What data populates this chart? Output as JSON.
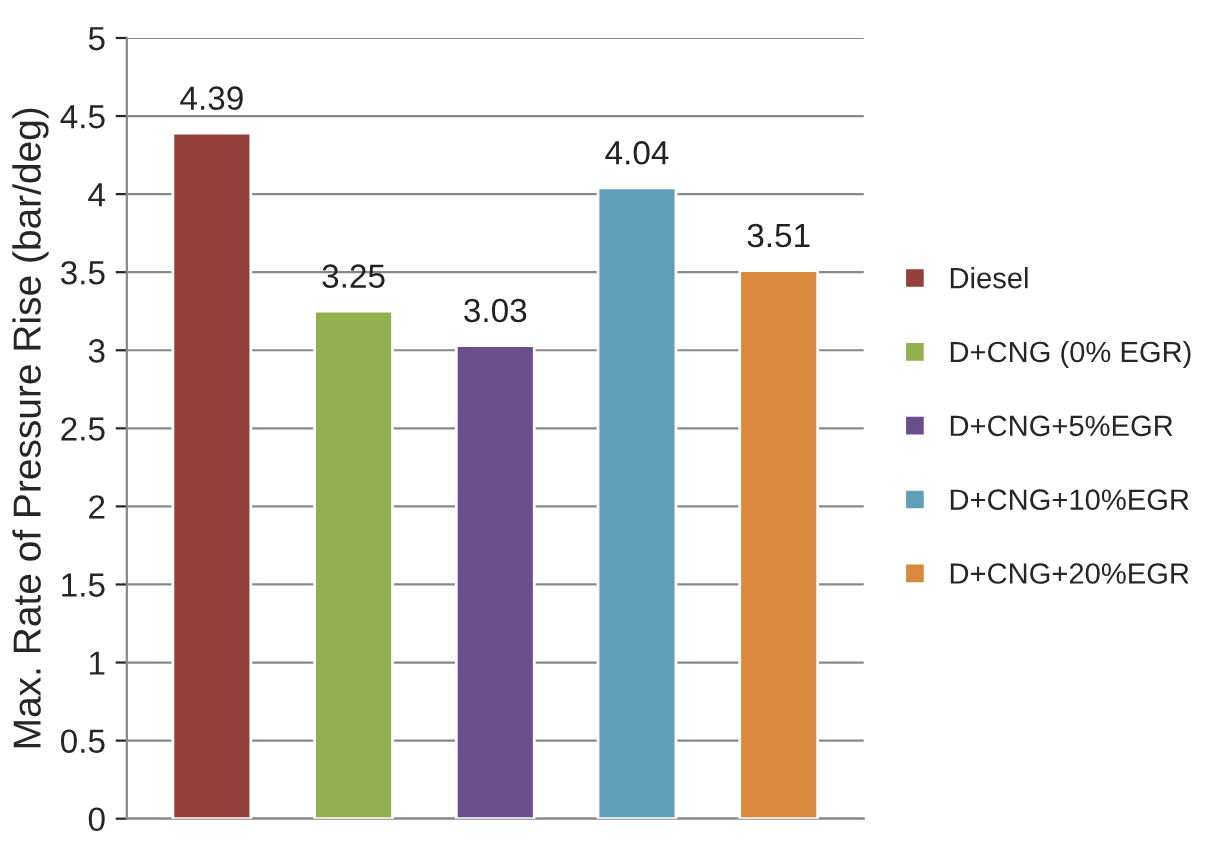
{
  "chart_data": {
    "type": "bar",
    "ylabel": "Max. Rate of Pressure Rise (bar/deg)",
    "categories": [
      null,
      null,
      null,
      null,
      null
    ],
    "series": [
      {
        "name": "Diesel",
        "color": "#953f3d",
        "values": [
          4.39,
          null,
          null,
          null,
          null
        ]
      },
      {
        "name": "D+CNG (0% EGR)",
        "color": "#93b04e",
        "values": [
          null,
          3.25,
          null,
          null,
          null
        ]
      },
      {
        "name": "D+CNG+5%EGR",
        "color": "#6a4e8e",
        "values": [
          null,
          null,
          3.03,
          null,
          null
        ]
      },
      {
        "name": "D+CNG+10%EGR",
        "color": "#619eba",
        "values": [
          null,
          null,
          null,
          4.04,
          null
        ]
      },
      {
        "name": "D+CNG+20%EGR",
        "color": "#d9893e",
        "values": [
          null,
          null,
          null,
          null,
          3.51
        ]
      }
    ],
    "ylim": [
      0,
      5
    ],
    "yticks": [
      0,
      0.5,
      1,
      1.5,
      2,
      2.5,
      3,
      3.5,
      4,
      4.5,
      5
    ],
    "grid": "y",
    "legend": "right",
    "data_labels": true,
    "tick_labels": "y"
  }
}
